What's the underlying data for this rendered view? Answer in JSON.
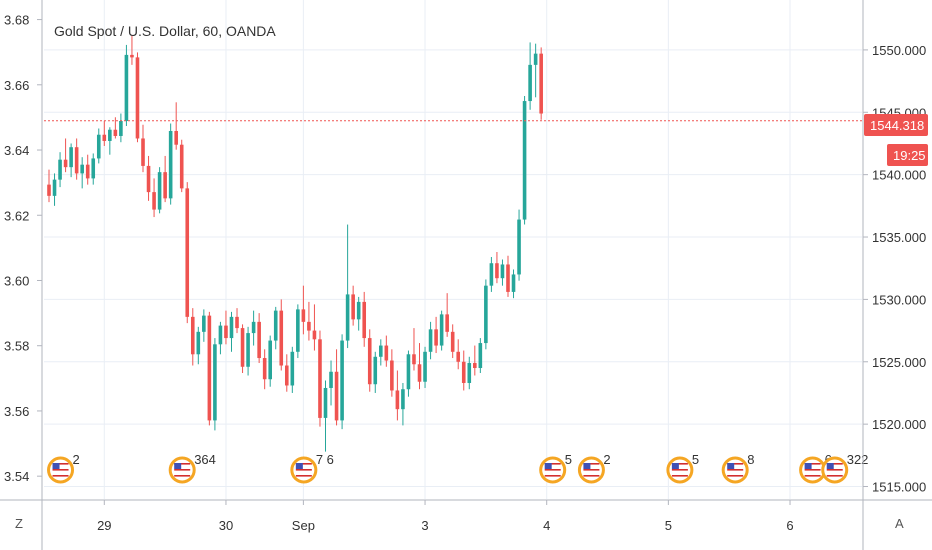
{
  "header": {
    "title": "Gold Spot / U.S. Dollar, 60, OANDA"
  },
  "corner": {
    "left_label": "Z",
    "right_label": "A"
  },
  "price_badge": {
    "price": "1544.318",
    "countdown": "19:25"
  },
  "colors": {
    "up": "#26a69a",
    "down": "#ef5350",
    "grid": "#e9eef5",
    "badge": "#ef5350",
    "axis_line": "#b2b5be"
  },
  "events": [
    {
      "label": "2",
      "icon": "us-flag-icon",
      "x_index": 1
    },
    {
      "label": "364",
      "icon": "us-flag-icon",
      "x_index": 23
    },
    {
      "label": "7 6",
      "icon": "us-flag-icon",
      "x_index": 45
    },
    {
      "label": "5",
      "icon": "us-flag-icon",
      "x_index": 90
    },
    {
      "label": "2",
      "icon": "us-flag-icon",
      "x_index": 97
    },
    {
      "label": "5",
      "icon": "us-flag-icon",
      "x_index": 113
    },
    {
      "label": "8",
      "icon": "us-flag-icon",
      "x_index": 123
    },
    {
      "label": "6",
      "icon": "us-flag-icon",
      "x_index": 137
    },
    {
      "label": "322",
      "icon": "us-flag-icon",
      "x_index": 141
    }
  ],
  "chart_data": {
    "type": "candlestick",
    "title": "Gold Spot / U.S. Dollar, 60, OANDA",
    "y_right": {
      "range": [
        1514,
        1554
      ],
      "ticks": [
        "1515.000",
        "1520.000",
        "1525.000",
        "1530.000",
        "1535.000",
        "1540.000",
        "1545.000",
        "1550.000"
      ]
    },
    "y_left": {
      "range": [
        3.533,
        3.686
      ],
      "ticks": [
        "3.54",
        "3.56",
        "3.58",
        "3.60",
        "3.62",
        "3.64",
        "3.66",
        "3.68"
      ]
    },
    "x_ticks": [
      {
        "label": "29",
        "index": 10
      },
      {
        "label": "30",
        "index": 32
      },
      {
        "label": "Sep",
        "index": 46
      },
      {
        "label": "3",
        "index": 68
      },
      {
        "label": "4",
        "index": 90
      },
      {
        "label": "5",
        "index": 112
      },
      {
        "label": "6",
        "index": 134
      }
    ],
    "last_price": 1544.318,
    "candles": [
      [
        1539.2,
        1540.4,
        1537.8,
        1538.3
      ],
      [
        1538.3,
        1540.1,
        1537.5,
        1539.6
      ],
      [
        1539.6,
        1541.8,
        1539.0,
        1541.2
      ],
      [
        1541.2,
        1542.9,
        1540.2,
        1540.6
      ],
      [
        1540.6,
        1542.5,
        1539.8,
        1542.2
      ],
      [
        1542.2,
        1542.9,
        1539.6,
        1540.1
      ],
      [
        1540.1,
        1541.4,
        1538.9,
        1540.8
      ],
      [
        1540.8,
        1541.6,
        1539.2,
        1539.7
      ],
      [
        1539.7,
        1541.7,
        1539.2,
        1541.3
      ],
      [
        1541.3,
        1543.7,
        1540.9,
        1543.2
      ],
      [
        1543.2,
        1544.3,
        1542.3,
        1542.7
      ],
      [
        1542.7,
        1543.8,
        1541.6,
        1543.6
      ],
      [
        1543.6,
        1544.6,
        1542.9,
        1543.1
      ],
      [
        1543.1,
        1544.9,
        1542.6,
        1544.3
      ],
      [
        1544.3,
        1550.4,
        1543.9,
        1549.6
      ],
      [
        1549.6,
        1551.2,
        1548.8,
        1549.4
      ],
      [
        1549.4,
        1549.8,
        1542.6,
        1542.9
      ],
      [
        1542.9,
        1544.0,
        1540.2,
        1540.7
      ],
      [
        1540.7,
        1541.5,
        1537.9,
        1538.6
      ],
      [
        1538.6,
        1539.7,
        1536.6,
        1537.2
      ],
      [
        1537.2,
        1540.6,
        1536.9,
        1540.2
      ],
      [
        1540.2,
        1541.5,
        1537.8,
        1538.1
      ],
      [
        1538.1,
        1544.1,
        1537.6,
        1543.5
      ],
      [
        1543.5,
        1545.8,
        1542.0,
        1542.4
      ],
      [
        1542.4,
        1542.8,
        1538.6,
        1538.9
      ],
      [
        1538.9,
        1539.4,
        1528.1,
        1528.6
      ],
      [
        1528.6,
        1529.3,
        1524.7,
        1525.6
      ],
      [
        1525.6,
        1527.8,
        1524.8,
        1527.4
      ],
      [
        1527.4,
        1529.2,
        1526.6,
        1528.7
      ],
      [
        1528.7,
        1529.0,
        1519.9,
        1520.3
      ],
      [
        1520.3,
        1526.9,
        1519.5,
        1526.4
      ],
      [
        1526.4,
        1528.2,
        1525.6,
        1527.9
      ],
      [
        1527.9,
        1529.1,
        1526.4,
        1526.9
      ],
      [
        1526.9,
        1529.0,
        1525.8,
        1528.6
      ],
      [
        1528.6,
        1529.3,
        1527.3,
        1527.7
      ],
      [
        1527.7,
        1528.0,
        1524.1,
        1524.6
      ],
      [
        1524.6,
        1527.8,
        1523.9,
        1527.3
      ],
      [
        1527.3,
        1529.1,
        1526.3,
        1528.2
      ],
      [
        1528.2,
        1528.9,
        1524.9,
        1525.3
      ],
      [
        1525.3,
        1526.0,
        1522.8,
        1523.6
      ],
      [
        1523.6,
        1527.1,
        1523.0,
        1526.7
      ],
      [
        1526.7,
        1529.4,
        1526.0,
        1529.1
      ],
      [
        1529.1,
        1530.0,
        1524.3,
        1524.7
      ],
      [
        1524.7,
        1525.6,
        1522.6,
        1523.1
      ],
      [
        1523.1,
        1526.2,
        1522.5,
        1525.8
      ],
      [
        1525.8,
        1529.6,
        1525.3,
        1529.2
      ],
      [
        1529.2,
        1531.1,
        1527.2,
        1528.2
      ],
      [
        1528.2,
        1529.8,
        1526.7,
        1527.5
      ],
      [
        1527.5,
        1529.6,
        1525.9,
        1526.8
      ],
      [
        1526.8,
        1527.5,
        1519.8,
        1520.5
      ],
      [
        1520.5,
        1523.5,
        1517.8,
        1522.9
      ],
      [
        1522.9,
        1525.1,
        1521.5,
        1524.2
      ],
      [
        1524.2,
        1526.0,
        1519.9,
        1520.3
      ],
      [
        1520.3,
        1527.2,
        1519.6,
        1526.7
      ],
      [
        1526.7,
        1536.0,
        1526.1,
        1530.4
      ],
      [
        1530.4,
        1531.1,
        1527.9,
        1528.4
      ],
      [
        1528.4,
        1530.2,
        1527.5,
        1529.8
      ],
      [
        1529.8,
        1530.6,
        1526.2,
        1526.9
      ],
      [
        1526.9,
        1527.6,
        1522.6,
        1523.2
      ],
      [
        1523.2,
        1525.8,
        1522.5,
        1525.4
      ],
      [
        1525.4,
        1526.8,
        1524.7,
        1526.3
      ],
      [
        1526.3,
        1527.1,
        1524.6,
        1525.1
      ],
      [
        1525.1,
        1526.0,
        1522.2,
        1522.7
      ],
      [
        1522.7,
        1524.3,
        1520.3,
        1521.2
      ],
      [
        1521.2,
        1523.3,
        1519.9,
        1522.8
      ],
      [
        1522.8,
        1525.9,
        1522.2,
        1525.6
      ],
      [
        1525.6,
        1527.7,
        1524.3,
        1524.8
      ],
      [
        1524.8,
        1526.5,
        1522.8,
        1523.4
      ],
      [
        1523.4,
        1526.2,
        1522.9,
        1525.8
      ],
      [
        1525.8,
        1528.2,
        1525.2,
        1527.6
      ],
      [
        1527.6,
        1528.6,
        1525.7,
        1526.3
      ],
      [
        1526.3,
        1529.1,
        1525.9,
        1528.8
      ],
      [
        1528.8,
        1530.5,
        1527.0,
        1527.4
      ],
      [
        1527.4,
        1528.0,
        1525.3,
        1525.8
      ],
      [
        1525.8,
        1526.8,
        1524.4,
        1525.0
      ],
      [
        1525.0,
        1525.9,
        1522.7,
        1523.3
      ],
      [
        1523.3,
        1525.4,
        1522.8,
        1524.9
      ],
      [
        1524.9,
        1526.3,
        1523.9,
        1524.5
      ],
      [
        1524.5,
        1526.9,
        1524.1,
        1526.5
      ],
      [
        1526.5,
        1531.6,
        1526.0,
        1531.1
      ],
      [
        1531.1,
        1533.4,
        1530.6,
        1532.9
      ],
      [
        1532.9,
        1533.8,
        1531.3,
        1531.7
      ],
      [
        1531.7,
        1533.2,
        1531.1,
        1532.8
      ],
      [
        1532.8,
        1533.5,
        1530.2,
        1530.6
      ],
      [
        1530.6,
        1532.4,
        1530.1,
        1532.0
      ],
      [
        1532.0,
        1537.2,
        1531.5,
        1536.4
      ],
      [
        1536.4,
        1546.3,
        1536.0,
        1545.9
      ],
      [
        1545.9,
        1550.6,
        1545.2,
        1548.8
      ],
      [
        1548.8,
        1550.5,
        1546.2,
        1549.7
      ],
      [
        1549.7,
        1550.2,
        1544.4,
        1544.9
      ]
    ]
  }
}
